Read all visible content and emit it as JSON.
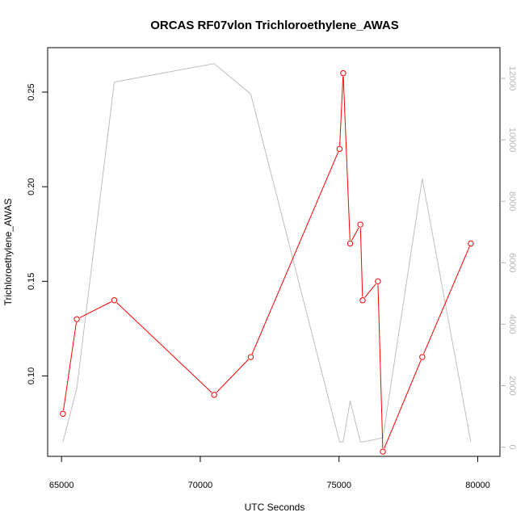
{
  "chart_data": {
    "type": "line",
    "title": "ORCAS RF07vlon Trichloroethylene_AWAS",
    "xlabel": "UTC Seconds",
    "ylabel": "Trichloroethylene_AWAS",
    "y2label": "",
    "xlim": [
      64500,
      80800
    ],
    "ylim": [
      0.0575,
      0.2735
    ],
    "y2lim": [
      -300,
      13000
    ],
    "x_ticks": [
      65000,
      70000,
      75000,
      80000
    ],
    "y_ticks": [
      0.1,
      0.15,
      0.2,
      0.25
    ],
    "y2_ticks": [
      0,
      2000,
      4000,
      6000,
      8000,
      10000,
      12000
    ],
    "grid": false,
    "legend": "none",
    "series": [
      {
        "axis": "left",
        "color": "#ff0000",
        "markers": "open-circle",
        "x": [
          65050,
          65550,
          66900,
          70500,
          71820,
          75020,
          75150,
          75400,
          75770,
          75850,
          76400,
          76580,
          78000,
          79750
        ],
        "values": [
          0.08,
          0.13,
          0.14,
          0.09,
          0.11,
          0.22,
          0.26,
          0.17,
          0.18,
          0.14,
          0.15,
          0.06,
          0.11,
          0.17
        ]
      },
      {
        "axis": "right",
        "color": "#bebebe",
        "markers": "none",
        "x": [
          65050,
          65550,
          66900,
          70500,
          71820,
          75020,
          75150,
          75400,
          75770,
          75850,
          76400,
          76580,
          78000,
          79750
        ],
        "values": [
          170,
          1910,
          11880,
          12480,
          11490,
          170,
          170,
          1510,
          170,
          170,
          270,
          300,
          8740,
          170
        ]
      }
    ]
  }
}
